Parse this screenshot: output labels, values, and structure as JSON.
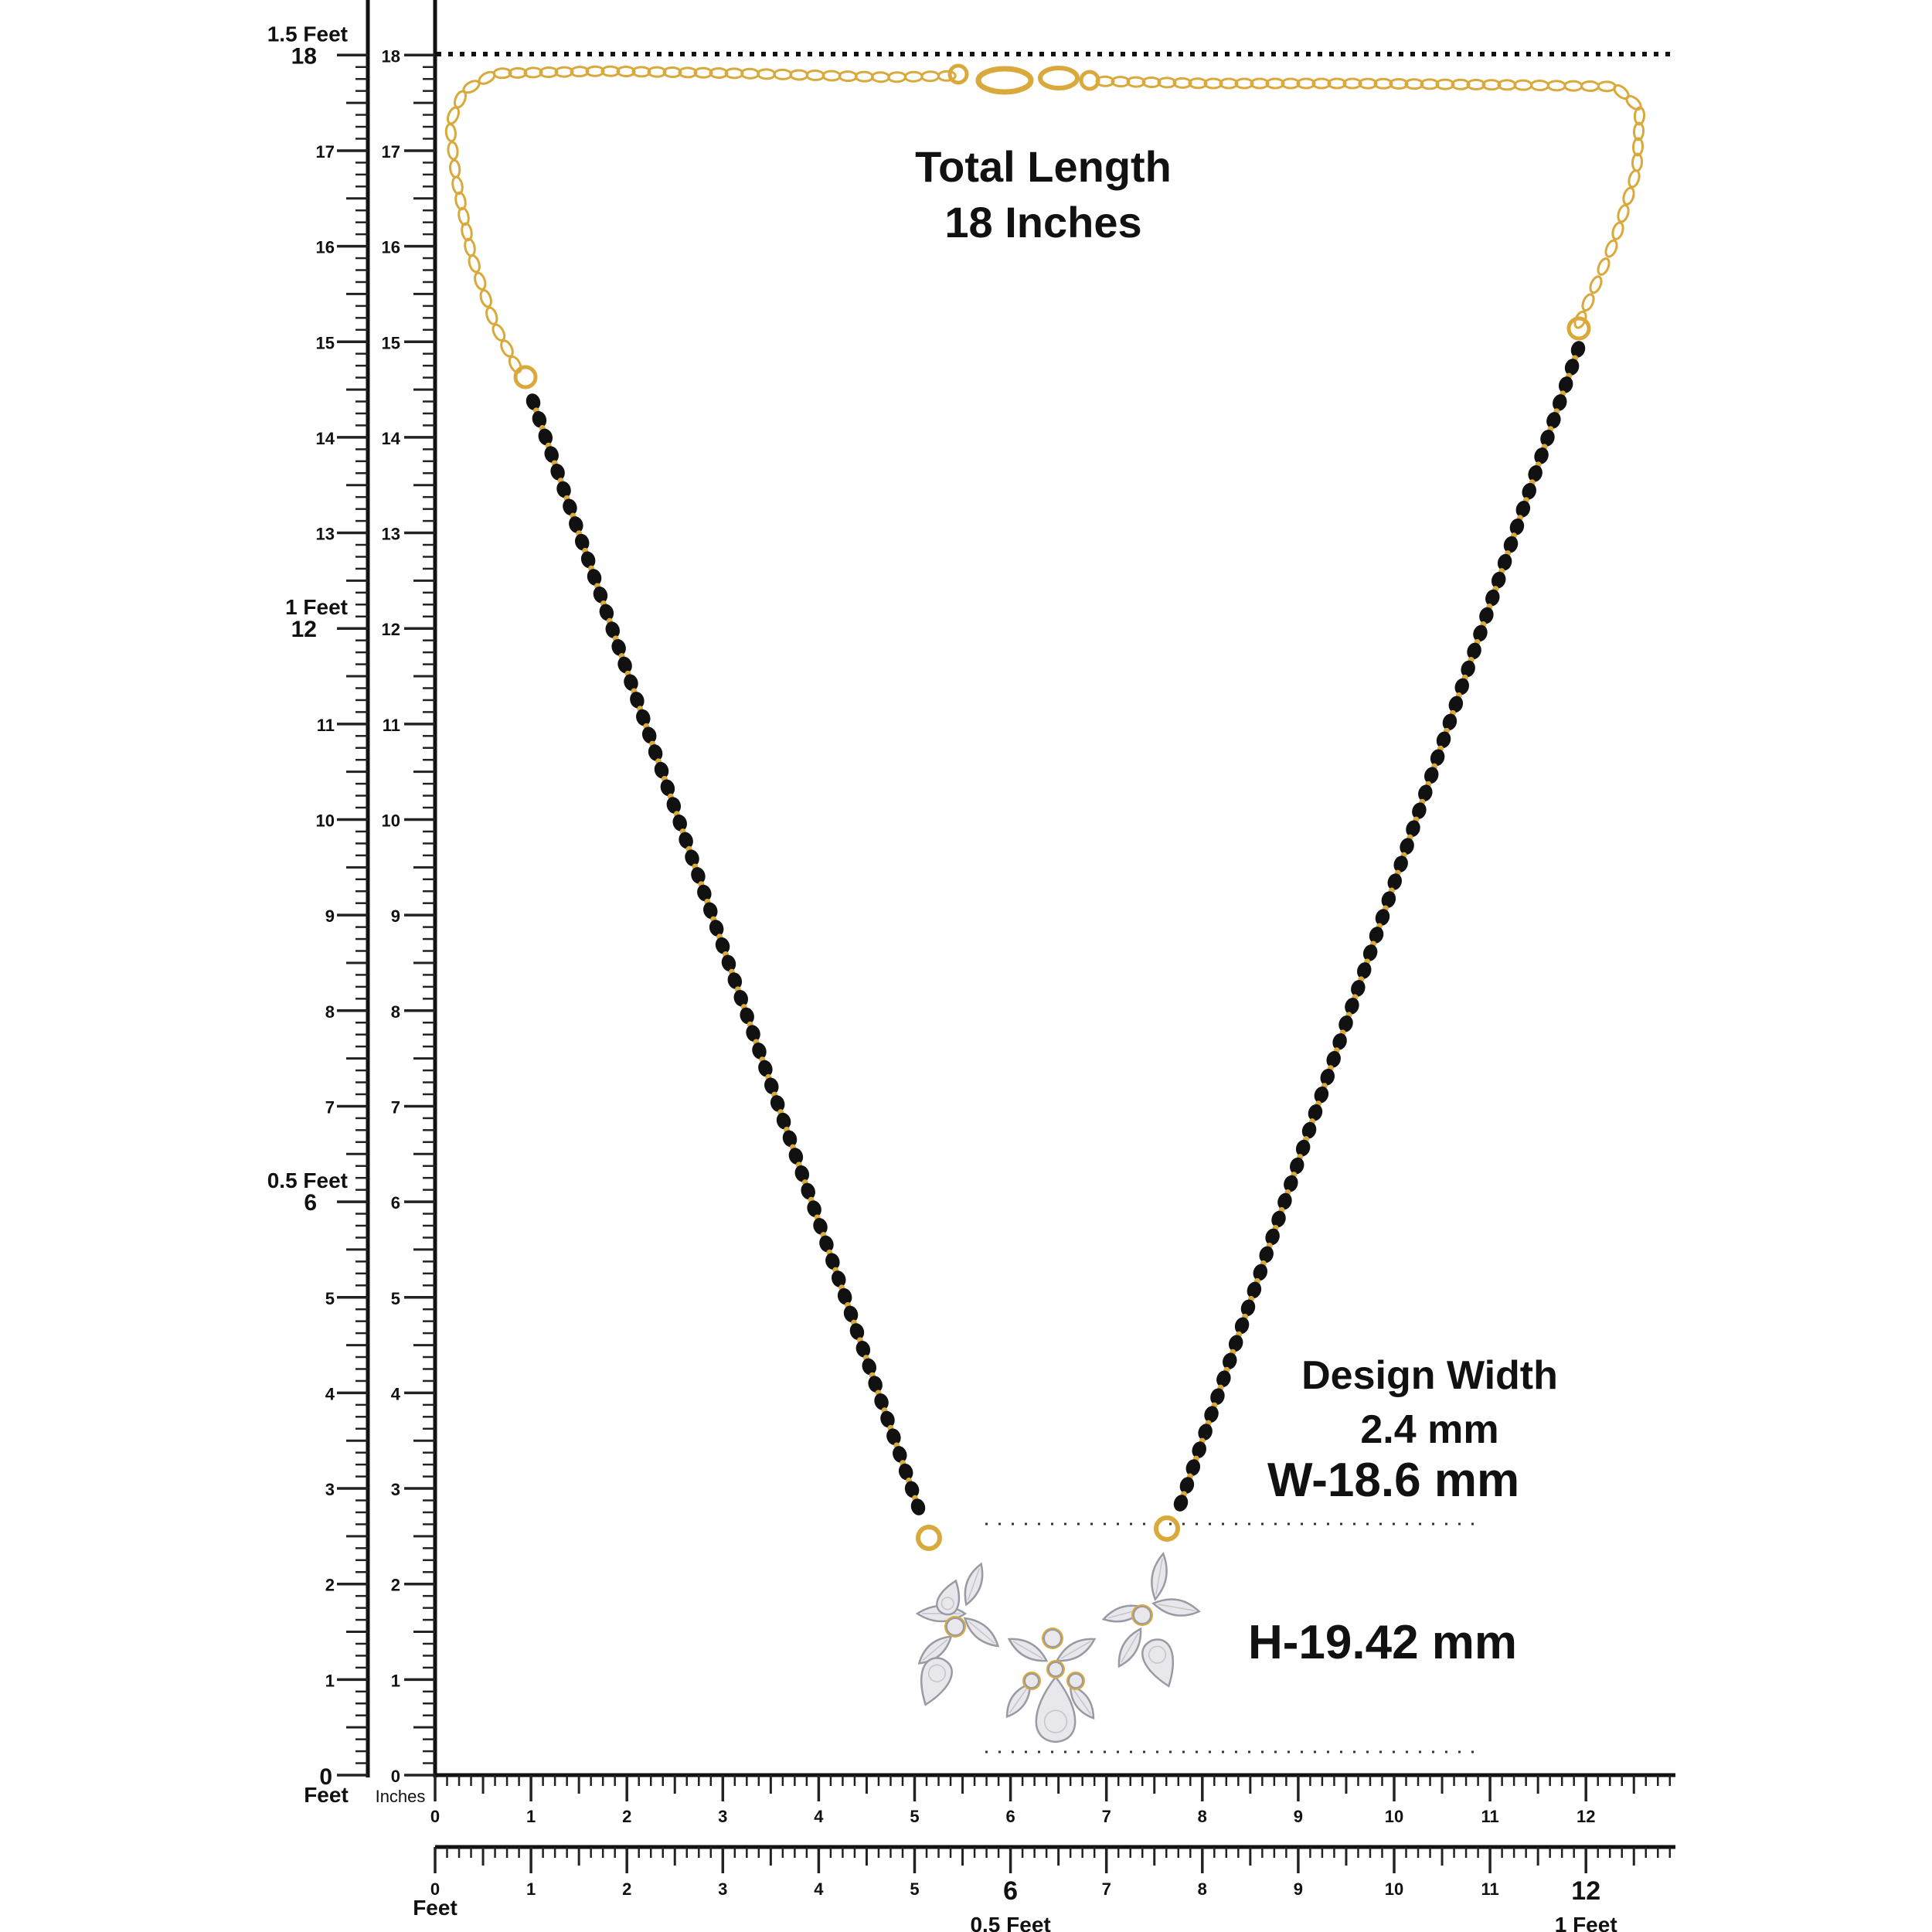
{
  "measurement": {
    "total_length_title": "Total Length",
    "total_length_value": "18 Inches",
    "design_width_title": "Design Width",
    "design_width_value": "2.4 mm",
    "width": "W-18.6 mm",
    "height": "H-19.42 mm"
  },
  "vertical_ruler": {
    "feet_markers": [
      {
        "feet": "1.5 Feet",
        "inches": "18"
      },
      {
        "feet": "1 Feet",
        "inches": "12"
      },
      {
        "feet": "0.5 Feet",
        "inches": "6"
      },
      {
        "feet": "0",
        "inches": "0"
      }
    ],
    "inch_labels": [
      "1",
      "2",
      "3",
      "4",
      "5",
      "7",
      "8",
      "9",
      "10",
      "11",
      "13",
      "14",
      "15",
      "16",
      "17"
    ],
    "inner_labels": [
      "0",
      "1",
      "2",
      "3",
      "4",
      "5",
      "6",
      "7",
      "8",
      "9",
      "10",
      "11",
      "12",
      "13",
      "14",
      "15",
      "16",
      "17",
      "18"
    ],
    "feet_unit": "Feet",
    "inches_unit": "Inches"
  },
  "horizontal_ruler": {
    "inch_labels": [
      "0",
      "1",
      "2",
      "3",
      "4",
      "5",
      "6",
      "7",
      "8",
      "9",
      "10",
      "11",
      "12"
    ],
    "bottom_labels": [
      "0",
      "1",
      "2",
      "3",
      "4",
      "5",
      "6",
      "7",
      "8",
      "9",
      "10",
      "11",
      "12"
    ],
    "feet_unit": "Feet",
    "half_foot": "0.5 Feet",
    "one_foot": "1 Feet"
  },
  "colors": {
    "gold": "#d9a93c",
    "bead": "#111111",
    "stone": "#e8e8ec",
    "stone_edge": "#9a9aa5"
  }
}
